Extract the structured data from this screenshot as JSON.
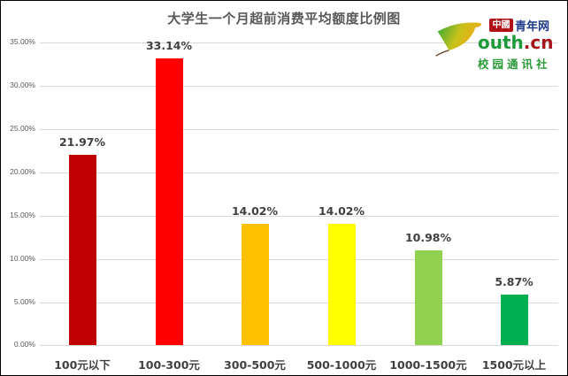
{
  "chart_data": {
    "type": "bar",
    "title": "大学生一个月超前消费平均额度比例图",
    "xlabel": "",
    "ylabel": "",
    "categories": [
      "100元以下",
      "100-300元",
      "300-500元",
      "500-1000元",
      "1000-1500元",
      "1500元以上"
    ],
    "values": [
      21.97,
      33.14,
      14.02,
      14.02,
      10.98,
      5.87
    ],
    "value_labels": [
      "21.97%",
      "33.14%",
      "14.02%",
      "14.02%",
      "10.98%",
      "5.87%"
    ],
    "colors": [
      "#c00000",
      "#ff0000",
      "#ffc000",
      "#ffff00",
      "#92d050",
      "#00b050"
    ],
    "ylim": [
      0,
      35
    ],
    "yticks": [
      "0.00%",
      "5.00%",
      "10.00%",
      "15.00%",
      "20.00%",
      "25.00%",
      "30.00%",
      "35.00%"
    ],
    "grid": true,
    "legend": "none"
  },
  "logo": {
    "badge": "中國",
    "name": "青年网",
    "domain_main": "outh",
    "domain_suffix": ".cn",
    "subtitle": "校园通讯社"
  }
}
